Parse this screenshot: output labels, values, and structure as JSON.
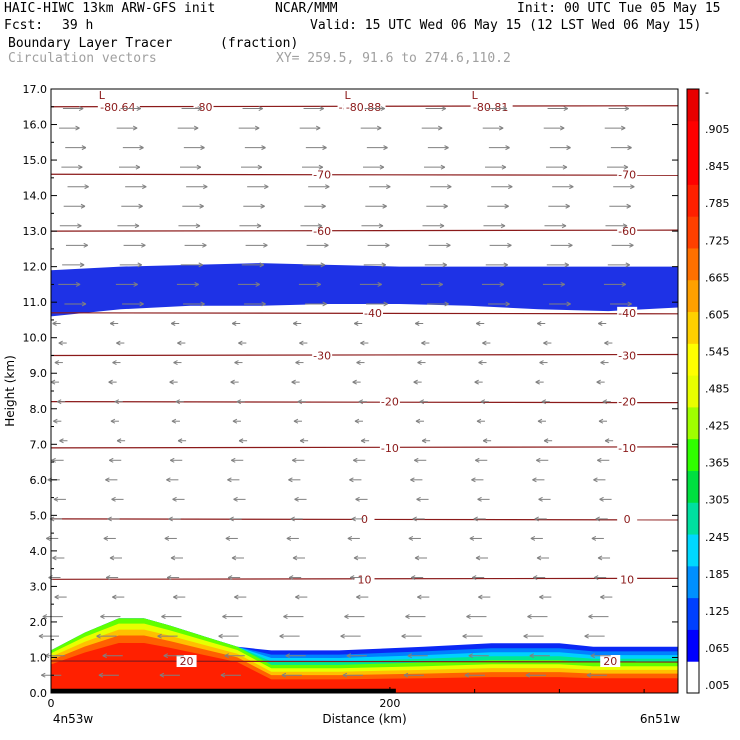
{
  "header": {
    "title": "HAIC-HIWC 13km ARW-GFS init",
    "org": "NCAR/MMM",
    "init": "Init: 00 UTC Tue 05 May 15",
    "fcst_label": "Fcst:",
    "fcst_value": "39 h",
    "valid": "Valid: 15 UTC Wed 06 May 15 (12 LST Wed 06 May 15)",
    "field": "Boundary Layer Tracer",
    "field_units": "(fraction)",
    "vectors": "Circulation vectors",
    "xy": "XY= 259.5, 91.6 to 274.6,110.2"
  },
  "chart_data": {
    "type": "heatmap",
    "xlabel": "Distance (km)",
    "ylabel": "Height (km)",
    "xlim": [
      0,
      370
    ],
    "ylim": [
      0,
      17
    ],
    "x_ticks": [
      {
        "v": 0,
        "label": "0"
      },
      {
        "v": 200,
        "label": "200"
      }
    ],
    "x_end_labels": {
      "left": "4n53w",
      "right": "6n51w"
    },
    "y_ticks": [
      "0.0",
      "1.0",
      "2.0",
      "3.0",
      "4.0",
      "5.0",
      "6.0",
      "7.0",
      "8.0",
      "9.0",
      "10.0",
      "11.0",
      "12.0",
      "13.0",
      "14.0",
      "15.0",
      "16.0",
      "17.0"
    ],
    "colorbar": {
      "labels": [
        ".005",
        ".065",
        ".125",
        ".185",
        ".245",
        ".305",
        ".365",
        ".425",
        ".485",
        ".545",
        ".605",
        ".665",
        ".725",
        ".785",
        ".845",
        ".905",
        "-"
      ],
      "colors": [
        "#ffffff",
        "#0000ff",
        "#0040ff",
        "#0090ff",
        "#00d8ff",
        "#00e0a0",
        "#00e040",
        "#30ff00",
        "#a0ff00",
        "#e8ff00",
        "#ffff00",
        "#ffd000",
        "#ffa000",
        "#ff7000",
        "#ff4000",
        "#ff2000",
        "#ff0000",
        "#ff0000",
        "#e80000"
      ]
    },
    "tracer_layers": [
      {
        "band": "upper",
        "value": 0.065,
        "bottom_km": [
          10.6,
          10.8,
          10.9,
          10.9,
          10.95,
          10.95,
          10.9,
          10.8,
          10.75,
          10.85
        ],
        "top_km": [
          11.9,
          12.0,
          12.05,
          12.1,
          12.05,
          12.0,
          12.0,
          12.0,
          12.0,
          12.0
        ]
      },
      {
        "band": "boundary_layer_top_km",
        "x_km": [
          0,
          20,
          40,
          55,
          70,
          90,
          110,
          130,
          170,
          220,
          260,
          300,
          320,
          345,
          370
        ],
        "top_km": [
          1.2,
          1.7,
          2.1,
          2.1,
          1.9,
          1.6,
          1.3,
          1.2,
          1.2,
          1.3,
          1.4,
          1.4,
          1.3,
          1.3,
          1.3
        ]
      }
    ],
    "temperature_contours": [
      {
        "label": "-80",
        "y_km": 16.5
      },
      {
        "label": "-70",
        "y_km": 14.6
      },
      {
        "label": "-60",
        "y_km": 13.0
      },
      {
        "label": "-40",
        "y_km": 10.7
      },
      {
        "label": "-30",
        "y_km": 9.5
      },
      {
        "label": "-20",
        "y_km": 8.2
      },
      {
        "label": "-10",
        "y_km": 6.9
      },
      {
        "label": "0",
        "y_km": 4.9
      },
      {
        "label": "10",
        "y_km": 3.2
      },
      {
        "label": "20",
        "y_km": 0.9
      }
    ],
    "minima": [
      {
        "label": "L",
        "value": "-80.64",
        "x_km": 30
      },
      {
        "label": "L",
        "value": "-80.88",
        "x_km": 175
      },
      {
        "label": "L",
        "value": "-80.81",
        "x_km": 250
      }
    ]
  }
}
